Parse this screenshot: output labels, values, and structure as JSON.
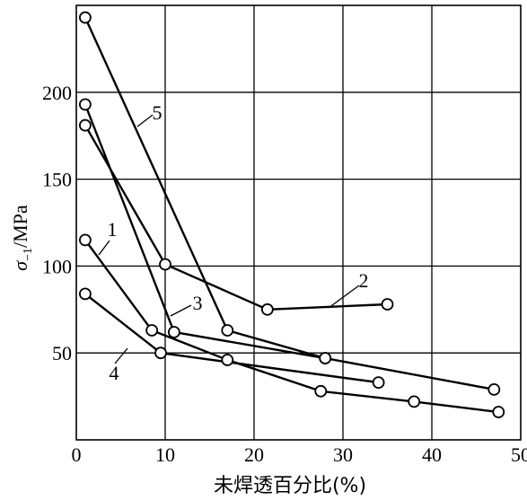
{
  "chart_data": {
    "type": "line",
    "xlabel": "未焊透百分比(%)",
    "ylabel_symbol": "σ",
    "ylabel_subscript": "−1",
    "ylabel_unit": "/MPa",
    "xlim": [
      0,
      50
    ],
    "ylim": [
      0,
      250
    ],
    "xticks": [
      0,
      10,
      20,
      30,
      40,
      50
    ],
    "yticks": [
      50,
      100,
      150,
      200
    ],
    "grid": true,
    "line_color": "#000000",
    "series": [
      {
        "name": "1",
        "x": [
          1,
          8.5,
          17,
          27.5,
          38,
          47.5
        ],
        "y": [
          115,
          63,
          46,
          28,
          22,
          16
        ]
      },
      {
        "name": "2",
        "x": [
          1,
          10,
          21.5,
          35
        ],
        "y": [
          181,
          101,
          75,
          78
        ]
      },
      {
        "name": "3",
        "x": [
          1,
          11,
          28,
          47
        ],
        "y": [
          193,
          62,
          47,
          29
        ]
      },
      {
        "name": "4",
        "x": [
          1,
          9.5,
          34
        ],
        "y": [
          84,
          50,
          33
        ]
      },
      {
        "name": "5",
        "x": [
          1,
          17,
          28
        ],
        "y": [
          243,
          63,
          47
        ]
      }
    ]
  }
}
